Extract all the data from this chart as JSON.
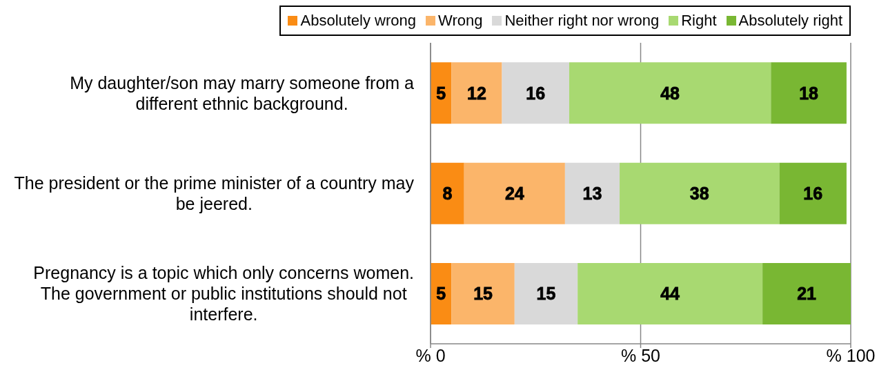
{
  "chart_data": {
    "type": "bar",
    "orientation": "horizontal",
    "stacked": true,
    "categories": [
      "My daughter/son may marry someone from a different ethnic background.",
      "The president or the prime minister of a country may be jeered.",
      "Pregnancy is a topic which only concerns women. The government or public institutions should not interfere."
    ],
    "series": [
      {
        "name": "Absolutely wrong",
        "color": "#fa8c14",
        "values": [
          5,
          8,
          5
        ]
      },
      {
        "name": "Wrong",
        "color": "#fbb56a",
        "values": [
          12,
          24,
          15
        ]
      },
      {
        "name": "Neither right nor wrong",
        "color": "#d9d9d9",
        "values": [
          16,
          13,
          15
        ]
      },
      {
        "name": "Right",
        "color": "#a8d971",
        "values": [
          48,
          38,
          44
        ]
      },
      {
        "name": "Absolutely right",
        "color": "#79b733",
        "values": [
          18,
          16,
          21
        ]
      }
    ],
    "xlim": [
      0,
      100
    ],
    "xticks": [
      {
        "value": 0,
        "label": "% 0"
      },
      {
        "value": 50,
        "label": "% 50"
      },
      {
        "value": 100,
        "label": "% 100"
      }
    ],
    "grid": "x",
    "legend": "top",
    "data_labels": true
  }
}
